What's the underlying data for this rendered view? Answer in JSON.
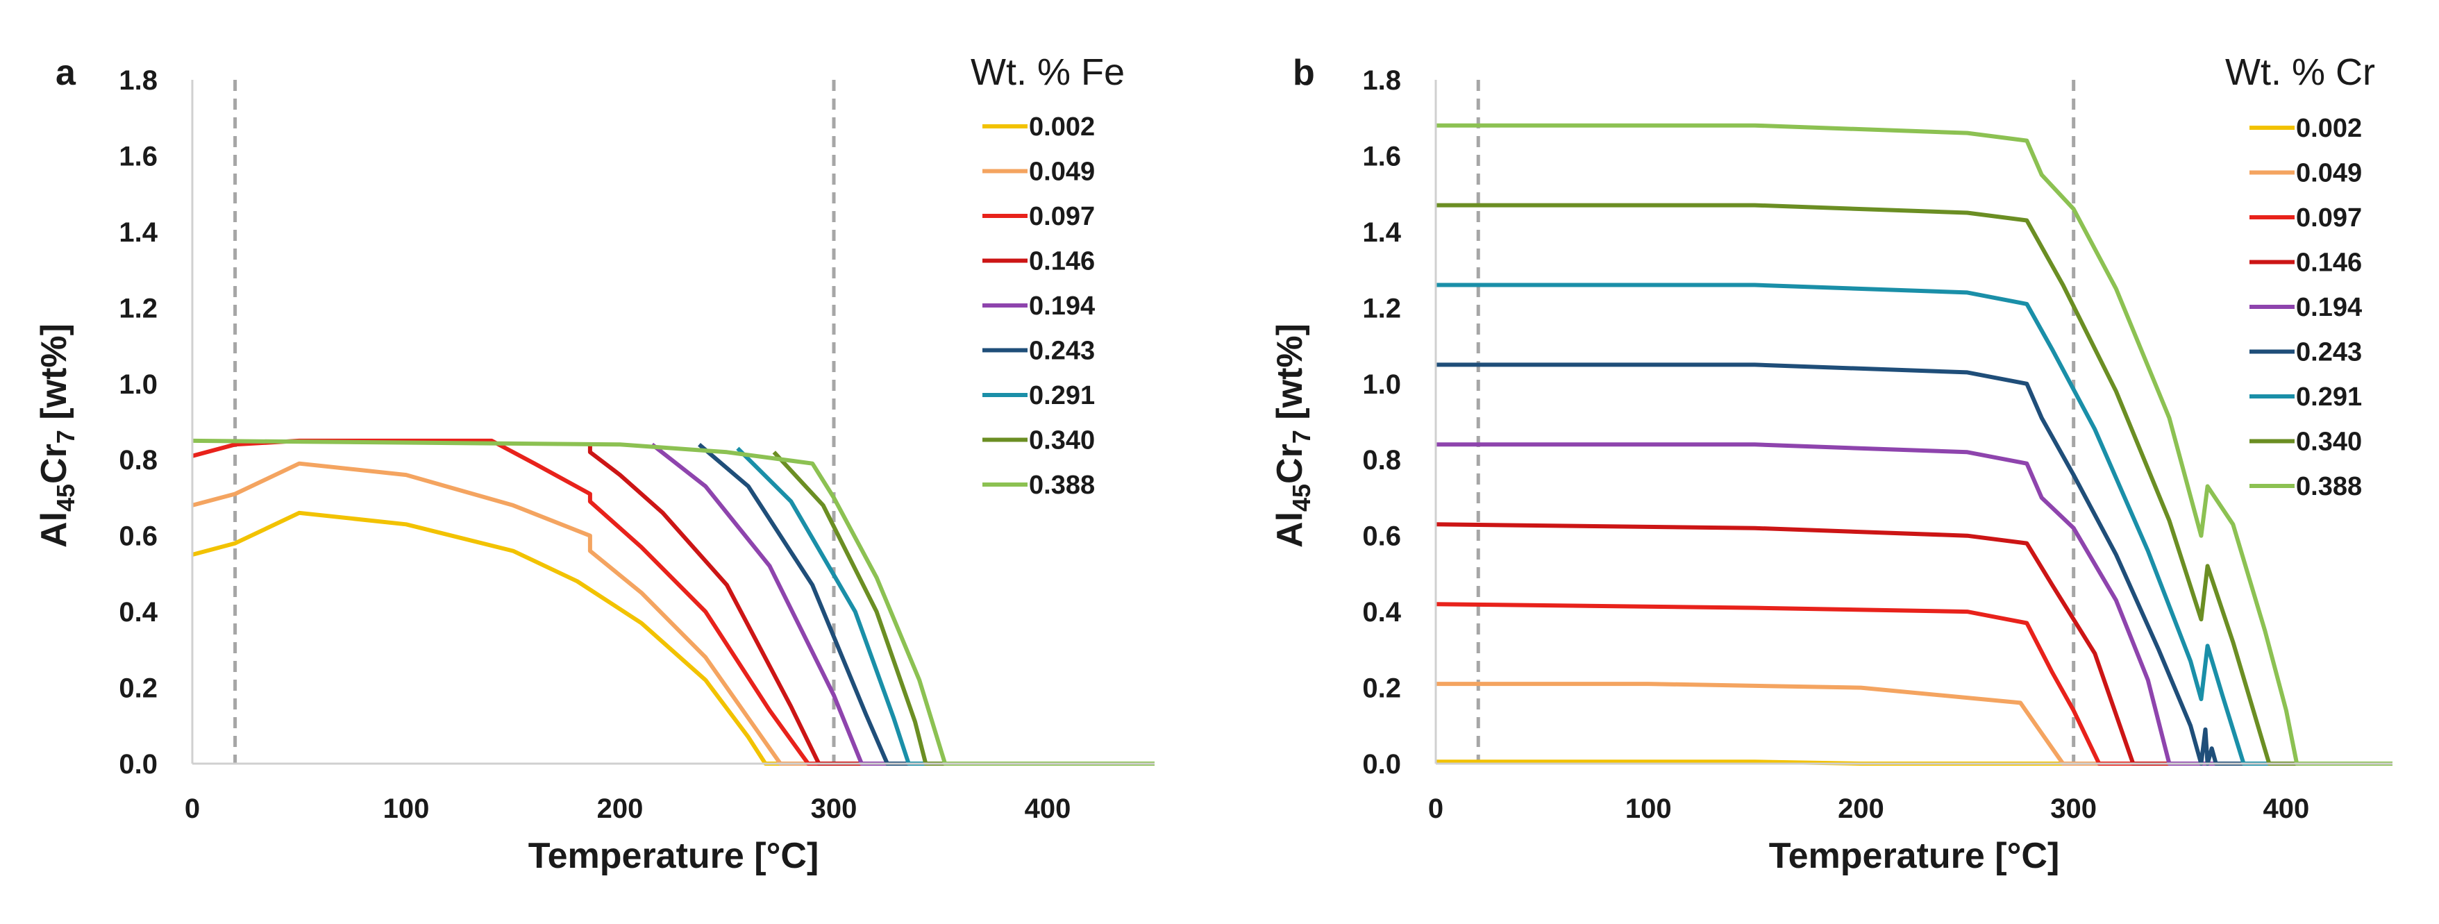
{
  "chart_data": [
    {
      "type": "line",
      "panel_label": "a",
      "xlabel": "Temperature [°C]",
      "ylabel_main": "Al",
      "ylabel_sub1": "45",
      "ylabel_mid": "Cr",
      "ylabel_sub2": "7",
      "ylabel_tail": " [wt%]",
      "xlim": [
        0,
        450
      ],
      "ylim": [
        0,
        1.8
      ],
      "xticks": [
        0,
        100,
        200,
        300,
        400
      ],
      "yticks": [
        0.0,
        0.2,
        0.4,
        0.6,
        0.8,
        1.0,
        1.2,
        1.4,
        1.6,
        1.8
      ],
      "ytick_labels": [
        "0.0",
        "0.2",
        "0.4",
        "0.6",
        "0.8",
        "1.0",
        "1.2",
        "1.4",
        "1.6",
        "1.8"
      ],
      "vlines": [
        20,
        300
      ],
      "legend_title": "Wt. % Fe",
      "legend_placement": "right",
      "grid": false,
      "series": [
        {
          "name": "0.002",
          "color": "#f2c200",
          "points": [
            [
              0,
              0.55
            ],
            [
              20,
              0.58
            ],
            [
              50,
              0.66
            ],
            [
              100,
              0.63
            ],
            [
              150,
              0.56
            ],
            [
              180,
              0.48
            ],
            [
              210,
              0.37
            ],
            [
              240,
              0.22
            ],
            [
              260,
              0.07
            ],
            [
              268,
              0
            ],
            [
              450,
              0
            ]
          ]
        },
        {
          "name": "0.049",
          "color": "#f4a460",
          "points": [
            [
              0,
              0.68
            ],
            [
              20,
              0.71
            ],
            [
              50,
              0.79
            ],
            [
              100,
              0.76
            ],
            [
              150,
              0.68
            ],
            [
              186,
              0.6
            ],
            [
              186,
              0.56
            ],
            [
              210,
              0.45
            ],
            [
              240,
              0.28
            ],
            [
              265,
              0.08
            ],
            [
              275,
              0
            ],
            [
              450,
              0
            ]
          ]
        },
        {
          "name": "0.097",
          "color": "#e8221b",
          "points": [
            [
              0,
              0.81
            ],
            [
              20,
              0.84
            ],
            [
              50,
              0.85
            ],
            [
              140,
              0.85
            ],
            [
              160,
              0.79
            ],
            [
              186,
              0.71
            ],
            [
              186,
              0.69
            ],
            [
              210,
              0.57
            ],
            [
              240,
              0.4
            ],
            [
              270,
              0.14
            ],
            [
              288,
              0
            ],
            [
              450,
              0
            ]
          ]
        },
        {
          "name": "0.146",
          "color": "#cc1515",
          "points": [
            [
              186,
              0.84
            ],
            [
              186,
              0.82
            ],
            [
              200,
              0.76
            ],
            [
              220,
              0.66
            ],
            [
              250,
              0.47
            ],
            [
              280,
              0.15
            ],
            [
              293,
              0
            ],
            [
              450,
              0
            ]
          ]
        },
        {
          "name": "0.194",
          "color": "#8e44ad",
          "points": [
            [
              215,
              0.84
            ],
            [
              240,
              0.73
            ],
            [
              270,
              0.52
            ],
            [
              300,
              0.18
            ],
            [
              313,
              0
            ],
            [
              450,
              0
            ]
          ]
        },
        {
          "name": "0.243",
          "color": "#1f4e79",
          "points": [
            [
              237,
              0.84
            ],
            [
              260,
              0.73
            ],
            [
              290,
              0.47
            ],
            [
              315,
              0.13
            ],
            [
              325,
              0
            ],
            [
              450,
              0
            ]
          ]
        },
        {
          "name": "0.291",
          "color": "#1a8fa8",
          "points": [
            [
              255,
              0.83
            ],
            [
              280,
              0.69
            ],
            [
              310,
              0.4
            ],
            [
              328,
              0.12
            ],
            [
              335,
              0
            ],
            [
              450,
              0
            ]
          ]
        },
        {
          "name": "0.340",
          "color": "#6b8e23",
          "points": [
            [
              272,
              0.82
            ],
            [
              295,
              0.68
            ],
            [
              320,
              0.4
            ],
            [
              338,
              0.11
            ],
            [
              343,
              0
            ],
            [
              450,
              0
            ]
          ]
        },
        {
          "name": "0.388",
          "color": "#8cc152",
          "points": [
            [
              0,
              0.85
            ],
            [
              200,
              0.84
            ],
            [
              250,
              0.82
            ],
            [
              290,
              0.79
            ],
            [
              300,
              0.7
            ],
            [
              320,
              0.49
            ],
            [
              340,
              0.22
            ],
            [
              352,
              0
            ],
            [
              450,
              0
            ]
          ]
        }
      ]
    },
    {
      "type": "line",
      "panel_label": "b",
      "xlabel": "Temperature [°C]",
      "ylabel_main": "Al",
      "ylabel_sub1": "45",
      "ylabel_mid": "Cr",
      "ylabel_sub2": "7",
      "ylabel_tail": " [wt%]",
      "xlim": [
        0,
        450
      ],
      "ylim": [
        0,
        1.8
      ],
      "xticks": [
        0,
        100,
        200,
        300,
        400
      ],
      "yticks": [
        0.0,
        0.2,
        0.4,
        0.6,
        0.8,
        1.0,
        1.2,
        1.4,
        1.6,
        1.8
      ],
      "ytick_labels": [
        "0.0",
        "0.2",
        "0.4",
        "0.6",
        "0.8",
        "1.0",
        "1.2",
        "1.4",
        "1.6",
        "1.8"
      ],
      "vlines": [
        20,
        300
      ],
      "legend_title": "Wt. % Cr",
      "legend_placement": "right",
      "grid": false,
      "series": [
        {
          "name": "0.002",
          "color": "#f2c200",
          "points": [
            [
              0,
              0.005
            ],
            [
              150,
              0.005
            ],
            [
              200,
              0
            ],
            [
              450,
              0
            ]
          ]
        },
        {
          "name": "0.049",
          "color": "#f4a460",
          "points": [
            [
              0,
              0.21
            ],
            [
              100,
              0.21
            ],
            [
              200,
              0.2
            ],
            [
              275,
              0.16
            ],
            [
              285,
              0.08
            ],
            [
              295,
              0
            ],
            [
              450,
              0
            ]
          ]
        },
        {
          "name": "0.097",
          "color": "#e8221b",
          "points": [
            [
              0,
              0.42
            ],
            [
              150,
              0.41
            ],
            [
              250,
              0.4
            ],
            [
              278,
              0.37
            ],
            [
              290,
              0.24
            ],
            [
              300,
              0.14
            ],
            [
              312,
              0
            ],
            [
              450,
              0
            ]
          ]
        },
        {
          "name": "0.146",
          "color": "#cc1515",
          "points": [
            [
              0,
              0.63
            ],
            [
              150,
              0.62
            ],
            [
              250,
              0.6
            ],
            [
              278,
              0.58
            ],
            [
              290,
              0.47
            ],
            [
              310,
              0.29
            ],
            [
              328,
              0
            ],
            [
              450,
              0
            ]
          ]
        },
        {
          "name": "0.194",
          "color": "#8e44ad",
          "points": [
            [
              0,
              0.84
            ],
            [
              150,
              0.84
            ],
            [
              250,
              0.82
            ],
            [
              278,
              0.79
            ],
            [
              285,
              0.7
            ],
            [
              300,
              0.62
            ],
            [
              320,
              0.43
            ],
            [
              335,
              0.22
            ],
            [
              345,
              0
            ],
            [
              450,
              0
            ]
          ]
        },
        {
          "name": "0.243",
          "color": "#1f4e79",
          "points": [
            [
              0,
              1.05
            ],
            [
              150,
              1.05
            ],
            [
              250,
              1.03
            ],
            [
              278,
              1.0
            ],
            [
              285,
              0.91
            ],
            [
              300,
              0.76
            ],
            [
              320,
              0.55
            ],
            [
              340,
              0.3
            ],
            [
              355,
              0.1
            ],
            [
              360,
              0
            ],
            [
              362,
              0.09
            ],
            [
              363,
              0
            ],
            [
              365,
              0.04
            ],
            [
              367,
              0
            ],
            [
              450,
              0
            ]
          ]
        },
        {
          "name": "0.291",
          "color": "#1a8fa8",
          "points": [
            [
              0,
              1.26
            ],
            [
              150,
              1.26
            ],
            [
              250,
              1.24
            ],
            [
              278,
              1.21
            ],
            [
              290,
              1.09
            ],
            [
              310,
              0.88
            ],
            [
              335,
              0.56
            ],
            [
              355,
              0.27
            ],
            [
              360,
              0.17
            ],
            [
              363,
              0.31
            ],
            [
              370,
              0.18
            ],
            [
              380,
              0
            ],
            [
              450,
              0
            ]
          ]
        },
        {
          "name": "0.340",
          "color": "#6b8e23",
          "points": [
            [
              0,
              1.47
            ],
            [
              150,
              1.47
            ],
            [
              250,
              1.45
            ],
            [
              278,
              1.43
            ],
            [
              295,
              1.26
            ],
            [
              320,
              0.98
            ],
            [
              345,
              0.64
            ],
            [
              360,
              0.38
            ],
            [
              363,
              0.52
            ],
            [
              375,
              0.32
            ],
            [
              392,
              0
            ],
            [
              450,
              0
            ]
          ]
        },
        {
          "name": "0.388",
          "color": "#8cc152",
          "points": [
            [
              0,
              1.68
            ],
            [
              150,
              1.68
            ],
            [
              250,
              1.66
            ],
            [
              278,
              1.64
            ],
            [
              285,
              1.55
            ],
            [
              300,
              1.46
            ],
            [
              320,
              1.25
            ],
            [
              345,
              0.91
            ],
            [
              360,
              0.6
            ],
            [
              363,
              0.73
            ],
            [
              375,
              0.63
            ],
            [
              390,
              0.35
            ],
            [
              400,
              0.14
            ],
            [
              405,
              0
            ],
            [
              450,
              0
            ]
          ]
        }
      ]
    }
  ]
}
